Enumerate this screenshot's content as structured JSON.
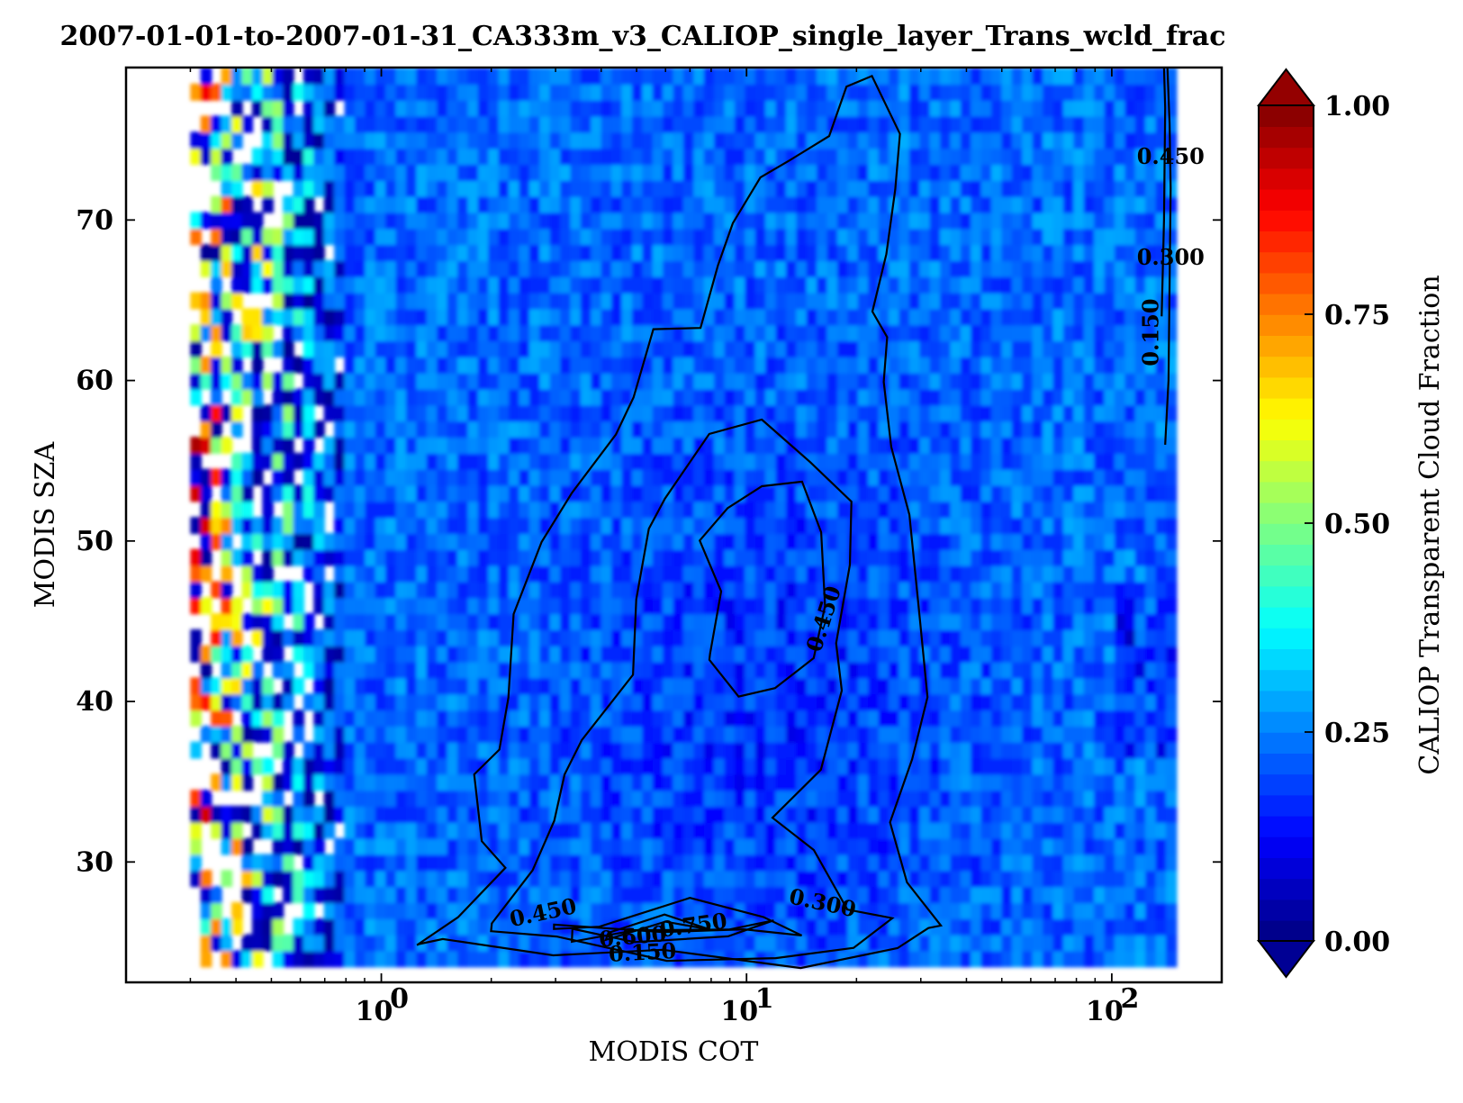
{
  "chart_data": {
    "type": "heatmap",
    "title": "2007-01-01-to-2007-01-31_CA333m_v3_CALIOP_single_layer_Trans_wcld_frac",
    "xlabel": "MODIS COT",
    "ylabel": "MODIS SZA",
    "colorbar_label": "CALIOP Transparent Cloud Fraction",
    "x_scale": "log",
    "xlim": [
      0.2,
      200
    ],
    "ylim": [
      22.5,
      79.5
    ],
    "x_ticks": [
      {
        "value": 1,
        "base": "10",
        "exp": "0"
      },
      {
        "value": 10,
        "base": "10",
        "exp": "1"
      },
      {
        "value": 100,
        "base": "10",
        "exp": "2"
      }
    ],
    "y_ticks": [
      30,
      40,
      50,
      60,
      70
    ],
    "colorbar": {
      "colormap": "jet",
      "range": [
        0.0,
        1.0
      ],
      "ticks": [
        "0.00",
        "0.25",
        "0.50",
        "0.75",
        "1.00"
      ],
      "extend": "both"
    },
    "data_extent": {
      "x": [
        0.3,
        150
      ],
      "y": [
        23.5,
        79.5
      ]
    },
    "field_description_values": {
      "background_level": 0.22,
      "core_level": 0.15,
      "left_edge_max": 1.0
    },
    "contour_levels": [
      0.15,
      0.3,
      0.45,
      0.6,
      0.75
    ],
    "contour_labels": [
      {
        "text": "0.450",
        "x": 2.8,
        "y": 26.4,
        "rot": -12
      },
      {
        "text": "0.750",
        "x": 7.2,
        "y": 25.6,
        "rot": -8
      },
      {
        "text": "0.600",
        "x": 4.9,
        "y": 24.9,
        "rot": -5
      },
      {
        "text": "0.150",
        "x": 5.2,
        "y": 23.9,
        "rot": -3
      },
      {
        "text": "0.300",
        "x": 16.0,
        "y": 27.0,
        "rot": 12
      },
      {
        "text": "0.450",
        "x": 17.0,
        "y": 45.0,
        "rot": -72
      },
      {
        "text": "0.450",
        "x": 145,
        "y": 73.5,
        "rot": 0
      },
      {
        "text": "0.300",
        "x": 145,
        "y": 67.2,
        "rot": 0
      },
      {
        "text": "0.150",
        "x": 134,
        "y": 63.0,
        "rot": -90
      }
    ],
    "grid": false,
    "legend": "none"
  }
}
